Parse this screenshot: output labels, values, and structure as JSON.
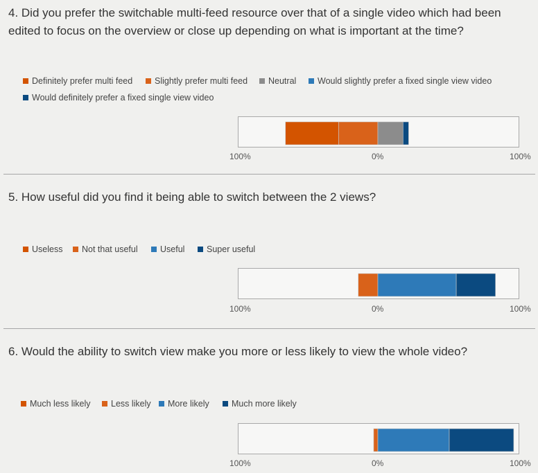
{
  "colors": {
    "orange_dark": "#d35400",
    "orange": "#d9621a",
    "gray": "#8c8c8c",
    "blue": "#2e7ab8",
    "navy": "#0b4a80"
  },
  "chart_data": [
    {
      "type": "bar",
      "orientation": "diverging-stacked-horizontal",
      "title": "4. Did you prefer the switchable multi-feed resource over that of a single video which had been edited to focus on the overview or close up depending on what is important at the time?",
      "xlim": [
        -100,
        100
      ],
      "ticks": [
        "100%",
        "0%",
        "100%"
      ],
      "grid": false,
      "legend_position": "top-left",
      "series": [
        {
          "name": "Definitely prefer multi feed",
          "value": 38,
          "side": "negative",
          "color": "#d35400"
        },
        {
          "name": "Slightly prefer multi feed",
          "value": 28,
          "side": "negative",
          "color": "#d9621a"
        },
        {
          "name": "Neutral",
          "value": 18,
          "side": "positive",
          "color": "#8c8c8c"
        },
        {
          "name": "Would slightly prefer a fixed single view video",
          "value": 0,
          "side": "positive",
          "color": "#2e7ab8"
        },
        {
          "name": "Would definitely prefer a fixed single view video",
          "value": 4,
          "side": "positive",
          "color": "#0b4a80"
        }
      ]
    },
    {
      "type": "bar",
      "orientation": "diverging-stacked-horizontal",
      "title": "5. How useful did you find it being able to switch between the 2 views?",
      "xlim": [
        -100,
        100
      ],
      "ticks": [
        "100%",
        "0%",
        "100%"
      ],
      "grid": false,
      "legend_position": "top-left",
      "series": [
        {
          "name": "Useless",
          "value": 0,
          "side": "negative",
          "color": "#d35400"
        },
        {
          "name": "Not that useful",
          "value": 14,
          "side": "negative",
          "color": "#d9621a"
        },
        {
          "name": "Useful",
          "value": 56,
          "side": "positive",
          "color": "#2e7ab8"
        },
        {
          "name": "Super useful",
          "value": 28,
          "side": "positive",
          "color": "#0b4a80"
        }
      ]
    },
    {
      "type": "bar",
      "orientation": "diverging-stacked-horizontal",
      "title": "6. Would the ability to switch view make you more or less likely to view the whole video?",
      "xlim": [
        -100,
        100
      ],
      "ticks": [
        "100%",
        "0%",
        "100%"
      ],
      "grid": false,
      "legend_position": "top-left",
      "series": [
        {
          "name": "Much less likely",
          "value": 0,
          "side": "negative",
          "color": "#d35400"
        },
        {
          "name": "Less likely",
          "value": 3,
          "side": "negative",
          "color": "#d9621a"
        },
        {
          "name": "More likely",
          "value": 51,
          "side": "positive",
          "color": "#2e7ab8"
        },
        {
          "name": "Much more likely",
          "value": 46,
          "side": "positive",
          "color": "#0b4a80"
        }
      ]
    }
  ]
}
